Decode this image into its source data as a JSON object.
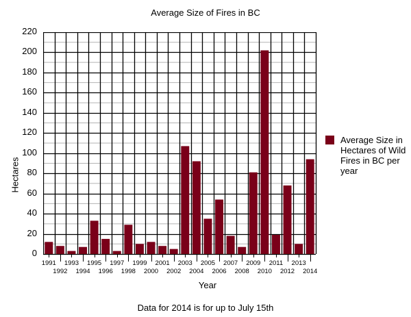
{
  "chart_data": {
    "type": "bar",
    "title": "Average Size of Fires in BC",
    "xlabel": "Year",
    "ylabel": "Hectares",
    "ylim": [
      0,
      220
    ],
    "yticks": [
      0,
      20,
      40,
      60,
      80,
      100,
      120,
      140,
      160,
      180,
      200,
      220
    ],
    "grid": {
      "major_step": 20,
      "minor_step": 10,
      "vertical": true
    },
    "legend_position": "right",
    "categories": [
      "1991",
      "1992",
      "1993",
      "1994",
      "1995",
      "1996",
      "1997",
      "1998",
      "1999",
      "2000",
      "2001",
      "2002",
      "2003",
      "2004",
      "2005",
      "2006",
      "2007",
      "2008",
      "2009",
      "2010",
      "2011",
      "2012",
      "2013",
      "2014"
    ],
    "series": [
      {
        "name": "Average Size in Hectares of Wild Fires in BC per year",
        "color": "#7a0019",
        "values": [
          12,
          8,
          3,
          7,
          33,
          15,
          3,
          29,
          10,
          12,
          8,
          5,
          107,
          92,
          35,
          54,
          18,
          7,
          81,
          202,
          19,
          68,
          10,
          94
        ]
      }
    ],
    "annotations": [
      "Data for 2014 is for up to July 15th"
    ]
  },
  "title": "Average Size of Fires in BC",
  "xlabel": "Year",
  "ylabel": "Hectares",
  "legend_label": "Average Size in Hectares of Wild Fires in BC per year",
  "note": "Data for 2014 is for up to July 15th"
}
